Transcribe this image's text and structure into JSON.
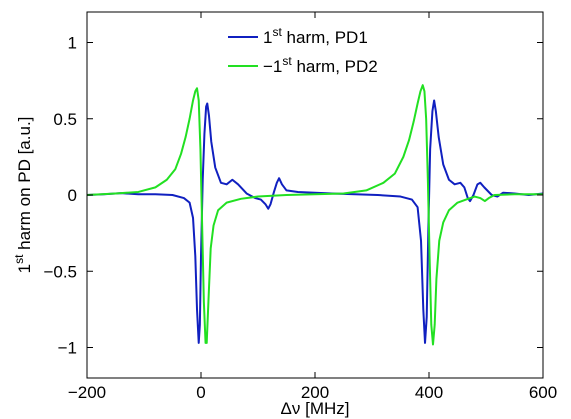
{
  "chart_data": {
    "type": "line",
    "xlabel": "Δν [MHz]",
    "ylabel": {
      "prefix": "1",
      "sup": "st",
      "suffix": " harm on PD [a.u.]"
    },
    "xlim": [
      -200,
      600
    ],
    "ylim": [
      -1.2,
      1.2
    ],
    "xticks": [
      -200,
      0,
      200,
      400,
      600
    ],
    "yticks": [
      -1,
      -0.5,
      0,
      0.5,
      1
    ],
    "xtick_labels": [
      "−200",
      "0",
      "200",
      "400",
      "600"
    ],
    "ytick_labels": [
      "−1",
      "−0.5",
      "0",
      "0.5",
      "1"
    ],
    "grid": false,
    "legend_position": "top-center",
    "series": [
      {
        "name": "1st harm, PD1",
        "legend": {
          "prefix": "1",
          "sup": "st",
          "suffix": " harm, PD1"
        },
        "color": "#1020c0",
        "points": [
          [
            -200,
            0.0
          ],
          [
            -170,
            0.005
          ],
          [
            -140,
            0.012
          ],
          [
            -110,
            0.005
          ],
          [
            -80,
            0.005
          ],
          [
            -50,
            0.0
          ],
          [
            -30,
            -0.02
          ],
          [
            -20,
            -0.05
          ],
          [
            -14,
            -0.15
          ],
          [
            -10,
            -0.4
          ],
          [
            -7,
            -0.75
          ],
          [
            -4,
            -0.97
          ],
          [
            -2,
            -0.85
          ],
          [
            0,
            -0.4
          ],
          [
            3,
            0.1
          ],
          [
            6,
            0.4
          ],
          [
            9,
            0.58
          ],
          [
            11,
            0.6
          ],
          [
            14,
            0.52
          ],
          [
            18,
            0.35
          ],
          [
            25,
            0.18
          ],
          [
            35,
            0.08
          ],
          [
            45,
            0.07
          ],
          [
            55,
            0.1
          ],
          [
            65,
            0.07
          ],
          [
            80,
            0.01
          ],
          [
            95,
            -0.02
          ],
          [
            105,
            -0.03
          ],
          [
            113,
            -0.06
          ],
          [
            118,
            -0.09
          ],
          [
            122,
            -0.06
          ],
          [
            128,
            0.02
          ],
          [
            133,
            0.08
          ],
          [
            137,
            0.11
          ],
          [
            142,
            0.07
          ],
          [
            150,
            0.03
          ],
          [
            170,
            0.02
          ],
          [
            200,
            0.015
          ],
          [
            230,
            0.01
          ],
          [
            270,
            0.005
          ],
          [
            310,
            0.0
          ],
          [
            350,
            -0.01
          ],
          [
            370,
            -0.03
          ],
          [
            380,
            -0.08
          ],
          [
            386,
            -0.3
          ],
          [
            390,
            -0.75
          ],
          [
            393,
            -0.97
          ],
          [
            396,
            -0.8
          ],
          [
            399,
            -0.2
          ],
          [
            402,
            0.3
          ],
          [
            406,
            0.55
          ],
          [
            409,
            0.62
          ],
          [
            412,
            0.55
          ],
          [
            417,
            0.38
          ],
          [
            425,
            0.2
          ],
          [
            435,
            0.1
          ],
          [
            445,
            0.07
          ],
          [
            455,
            0.08
          ],
          [
            462,
            0.05
          ],
          [
            468,
            -0.02
          ],
          [
            472,
            -0.04
          ],
          [
            478,
            0.0
          ],
          [
            485,
            0.07
          ],
          [
            490,
            0.08
          ],
          [
            497,
            0.05
          ],
          [
            510,
            0.0
          ],
          [
            520,
            -0.01
          ],
          [
            530,
            0.015
          ],
          [
            550,
            0.01
          ],
          [
            575,
            0.0
          ],
          [
            600,
            0.01
          ]
        ]
      },
      {
        "name": "−1st harm, PD2",
        "legend": {
          "prefix": "−1",
          "sup": "st",
          "suffix": " harm, PD2"
        },
        "color": "#22e022",
        "points": [
          [
            -200,
            0.0
          ],
          [
            -150,
            0.01
          ],
          [
            -110,
            0.02
          ],
          [
            -80,
            0.05
          ],
          [
            -60,
            0.1
          ],
          [
            -45,
            0.17
          ],
          [
            -35,
            0.27
          ],
          [
            -27,
            0.38
          ],
          [
            -20,
            0.5
          ],
          [
            -14,
            0.62
          ],
          [
            -10,
            0.68
          ],
          [
            -7,
            0.7
          ],
          [
            -4,
            0.62
          ],
          [
            -1,
            0.3
          ],
          [
            2,
            -0.2
          ],
          [
            5,
            -0.7
          ],
          [
            8,
            -0.97
          ],
          [
            10,
            -0.97
          ],
          [
            13,
            -0.7
          ],
          [
            17,
            -0.35
          ],
          [
            22,
            -0.2
          ],
          [
            30,
            -0.1
          ],
          [
            45,
            -0.05
          ],
          [
            70,
            -0.025
          ],
          [
            100,
            -0.01
          ],
          [
            150,
            0.0
          ],
          [
            200,
            0.005
          ],
          [
            250,
            0.01
          ],
          [
            290,
            0.03
          ],
          [
            320,
            0.08
          ],
          [
            340,
            0.14
          ],
          [
            355,
            0.25
          ],
          [
            365,
            0.36
          ],
          [
            373,
            0.48
          ],
          [
            380,
            0.6
          ],
          [
            385,
            0.68
          ],
          [
            389,
            0.72
          ],
          [
            392,
            0.68
          ],
          [
            395,
            0.5
          ],
          [
            398,
            0.1
          ],
          [
            401,
            -0.4
          ],
          [
            404,
            -0.85
          ],
          [
            407,
            -0.98
          ],
          [
            410,
            -0.85
          ],
          [
            413,
            -0.55
          ],
          [
            418,
            -0.3
          ],
          [
            425,
            -0.18
          ],
          [
            435,
            -0.1
          ],
          [
            450,
            -0.05
          ],
          [
            465,
            -0.03
          ],
          [
            480,
            -0.01
          ],
          [
            490,
            -0.02
          ],
          [
            498,
            -0.04
          ],
          [
            505,
            -0.02
          ],
          [
            515,
            0.0
          ],
          [
            550,
            0.005
          ],
          [
            600,
            0.005
          ]
        ]
      }
    ]
  }
}
